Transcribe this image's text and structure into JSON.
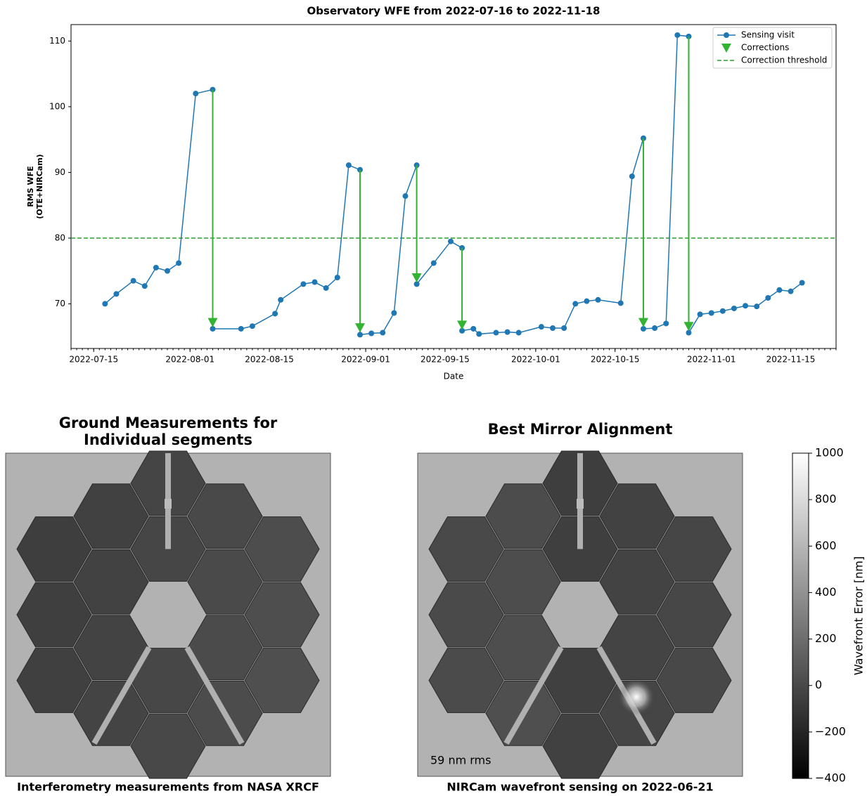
{
  "chart_data": [
    {
      "type": "line",
      "title": "Observatory WFE from 2022-07-16 to 2022-11-18",
      "xlabel": "Date",
      "ylabel": [
        "RMS WFE",
        "(OTE+NIRCam)"
      ],
      "x": [
        "2022-07-17",
        "2022-07-19",
        "2022-07-22",
        "2022-07-24",
        "2022-07-26",
        "2022-07-28",
        "2022-07-30",
        "2022-08-02",
        "2022-08-05",
        "2022-08-05",
        "2022-08-10",
        "2022-08-12",
        "2022-08-16",
        "2022-08-17",
        "2022-08-21",
        "2022-08-23",
        "2022-08-25",
        "2022-08-27",
        "2022-08-29",
        "2022-08-31",
        "2022-08-31",
        "2022-09-02",
        "2022-09-04",
        "2022-09-06",
        "2022-09-08",
        "2022-09-10",
        "2022-09-10",
        "2022-09-13",
        "2022-09-16",
        "2022-09-18",
        "2022-09-18",
        "2022-09-20",
        "2022-09-21",
        "2022-09-24",
        "2022-09-26",
        "2022-09-28",
        "2022-10-02",
        "2022-10-04",
        "2022-10-06",
        "2022-10-08",
        "2022-10-10",
        "2022-10-12",
        "2022-10-16",
        "2022-10-18",
        "2022-10-20",
        "2022-10-20",
        "2022-10-22",
        "2022-10-24",
        "2022-10-26",
        "2022-10-28",
        "2022-10-28",
        "2022-10-30",
        "2022-11-01",
        "2022-11-03",
        "2022-11-05",
        "2022-11-07",
        "2022-11-09",
        "2022-11-11",
        "2022-11-13",
        "2022-11-15",
        "2022-11-17"
      ],
      "series": [
        {
          "name": "Sensing visit",
          "color": "#1f77b4",
          "values": [
            70.0,
            71.5,
            73.5,
            72.7,
            75.5,
            75.0,
            76.2,
            102.0,
            102.6,
            66.2,
            66.2,
            66.6,
            68.5,
            70.6,
            73.0,
            73.3,
            72.4,
            74.0,
            91.1,
            90.4,
            65.3,
            65.5,
            65.6,
            68.6,
            86.4,
            91.1,
            73.0,
            76.2,
            79.5,
            78.5,
            65.9,
            66.2,
            65.4,
            65.6,
            65.7,
            65.6,
            66.5,
            66.3,
            66.3,
            70.0,
            70.4,
            70.6,
            70.1,
            89.4,
            95.2,
            66.2,
            66.3,
            67.0,
            110.9,
            110.7,
            65.6,
            68.4,
            68.6,
            68.9,
            69.3,
            69.7,
            69.6,
            70.9,
            72.1,
            71.9,
            73.2
          ]
        }
      ],
      "corrections": {
        "name": "Corrections",
        "color": "#32b432",
        "x": [
          "2022-08-05",
          "2022-08-31",
          "2022-09-10",
          "2022-09-18",
          "2022-10-20",
          "2022-10-28"
        ],
        "from": [
          102.6,
          90.4,
          91.1,
          78.5,
          95.2,
          110.7
        ],
        "values": [
          67.2,
          66.4,
          74.0,
          66.8,
          67.2,
          66.6
        ]
      },
      "threshold": {
        "name": "Correction threshold",
        "value": 80,
        "color": "#2ca02c"
      },
      "xlim": [
        "2022-07-11",
        "2022-11-23"
      ],
      "xticks": [
        "2022-07-15",
        "2022-08-01",
        "2022-08-15",
        "2022-09-01",
        "2022-09-15",
        "2022-10-01",
        "2022-10-15",
        "2022-11-01",
        "2022-11-15"
      ],
      "ylim": [
        63.2,
        112.5
      ],
      "yticks": [
        70,
        80,
        90,
        100,
        110
      ],
      "legend": "upper right"
    },
    {
      "type": "colorbar",
      "label": "Wavefront Error [nm]",
      "colormap": "gray",
      "ylim": [
        -400,
        1000
      ],
      "yticks": [
        {
          "value": -400,
          "label": "−400"
        },
        {
          "value": -200,
          "label": "−200"
        },
        0,
        200,
        400,
        600,
        800,
        1000
      ]
    }
  ],
  "panels": [
    {
      "title": [
        "Ground Measurements for",
        "Individual segments"
      ],
      "caption": "Interferometry measurements from NASA XRCF"
    },
    {
      "title": [
        "Best Mirror Alignment"
      ],
      "caption": "NIRCam wavefront sensing on 2022-06-21",
      "annotation": "59 nm rms"
    }
  ]
}
